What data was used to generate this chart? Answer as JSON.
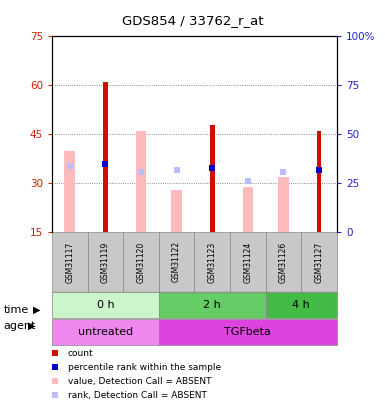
{
  "title": "GDS854 / 33762_r_at",
  "samples": [
    "GSM31117",
    "GSM31119",
    "GSM31120",
    "GSM31122",
    "GSM31123",
    "GSM31124",
    "GSM31126",
    "GSM31127"
  ],
  "count_values": [
    0,
    61,
    0,
    0,
    48,
    0,
    0,
    46
  ],
  "percentile_values": [
    0,
    35,
    0,
    0,
    33,
    0,
    0,
    32
  ],
  "absent_value_values": [
    40,
    0,
    46,
    28,
    0,
    29,
    32,
    0
  ],
  "absent_rank_values": [
    34,
    0,
    31,
    32,
    0,
    26,
    31,
    0
  ],
  "left_yticks": [
    15,
    30,
    45,
    60,
    75
  ],
  "right_yticks": [
    0,
    25,
    50,
    75,
    100
  ],
  "ylim_left": [
    15,
    75
  ],
  "ylim_right": [
    0,
    100
  ],
  "time_groups": [
    {
      "label": "0 h",
      "start": 0,
      "end": 2,
      "color": "#ccf5cc"
    },
    {
      "label": "2 h",
      "start": 3,
      "end": 5,
      "color": "#66cc66"
    },
    {
      "label": "4 h",
      "start": 6,
      "end": 7,
      "color": "#44bb44"
    }
  ],
  "agent_groups": [
    {
      "label": "untreated",
      "start": 0,
      "end": 2,
      "color": "#ee88ee"
    },
    {
      "label": "TGFbeta",
      "start": 3,
      "end": 7,
      "color": "#dd44dd"
    }
  ],
  "color_count": "#cc1100",
  "color_percentile": "#0000cc",
  "color_absent_value": "#ffbbbb",
  "color_absent_rank": "#bbbbff",
  "bar_width": 0.3,
  "left_tick_color": "#cc2200",
  "right_tick_color": "#2222cc",
  "grid_color": "#666666"
}
